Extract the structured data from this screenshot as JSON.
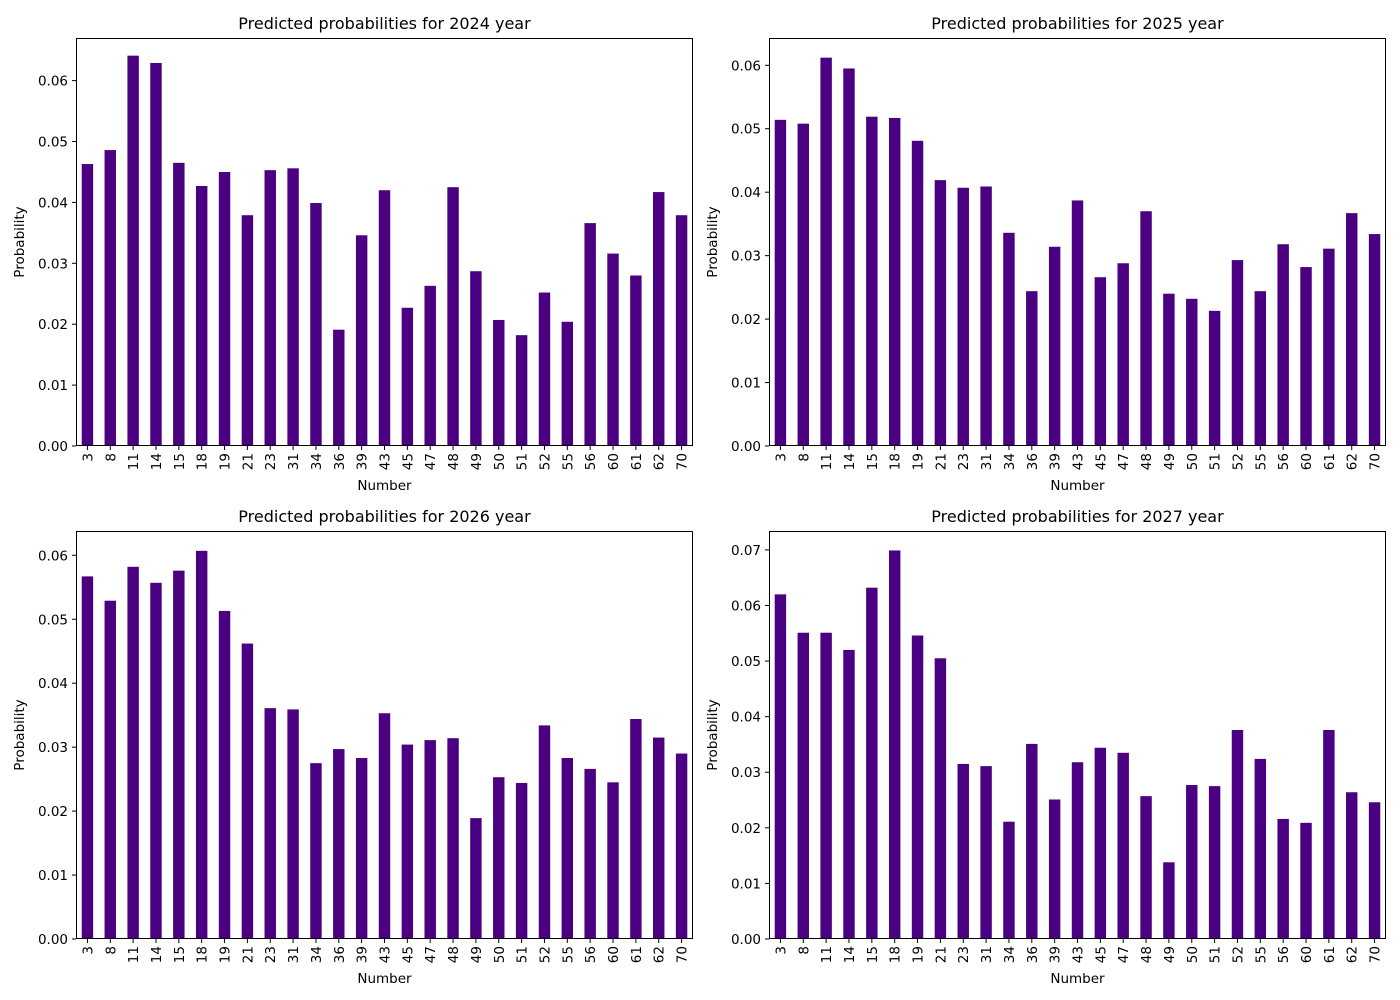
{
  "figure": {
    "background": "#ffffff",
    "bar_color": "#4b0082"
  },
  "chart_data": [
    {
      "type": "bar",
      "title": "Predicted probabilities for 2024 year",
      "xlabel": "Number",
      "ylabel": "Probability",
      "ylim": [
        0,
        0.067
      ],
      "yticks": [
        "0.00",
        "0.01",
        "0.02",
        "0.03",
        "0.04",
        "0.05",
        "0.06"
      ],
      "categories": [
        "3",
        "8",
        "11",
        "14",
        "15",
        "18",
        "19",
        "21",
        "23",
        "31",
        "34",
        "36",
        "39",
        "43",
        "45",
        "47",
        "48",
        "49",
        "50",
        "51",
        "52",
        "55",
        "56",
        "60",
        "61",
        "62",
        "70"
      ],
      "values": [
        0.0463,
        0.0486,
        0.0641,
        0.0629,
        0.0465,
        0.0427,
        0.045,
        0.0379,
        0.0453,
        0.0456,
        0.0399,
        0.0191,
        0.0346,
        0.042,
        0.0227,
        0.0263,
        0.0425,
        0.0287,
        0.0207,
        0.0182,
        0.0252,
        0.0204,
        0.0366,
        0.0316,
        0.028,
        0.0417,
        0.0379
      ]
    },
    {
      "type": "bar",
      "title": "Predicted probabilities for 2025 year",
      "xlabel": "Number",
      "ylabel": "Probability",
      "ylim": [
        0,
        0.0643
      ],
      "yticks": [
        "0.00",
        "0.01",
        "0.02",
        "0.03",
        "0.04",
        "0.05",
        "0.06"
      ],
      "categories": [
        "3",
        "8",
        "11",
        "14",
        "15",
        "18",
        "19",
        "21",
        "23",
        "31",
        "34",
        "36",
        "39",
        "43",
        "45",
        "47",
        "48",
        "49",
        "50",
        "51",
        "52",
        "55",
        "56",
        "60",
        "61",
        "62",
        "70"
      ],
      "values": [
        0.0514,
        0.0508,
        0.0612,
        0.0595,
        0.0519,
        0.0517,
        0.0481,
        0.0419,
        0.0407,
        0.0409,
        0.0336,
        0.0244,
        0.0314,
        0.0387,
        0.0266,
        0.0288,
        0.037,
        0.024,
        0.0232,
        0.0213,
        0.0293,
        0.0244,
        0.0318,
        0.0282,
        0.0311,
        0.0367,
        0.0334
      ]
    },
    {
      "type": "bar",
      "title": "Predicted probabilities for 2026 year",
      "xlabel": "Number",
      "ylabel": "Probability",
      "ylim": [
        0,
        0.0638
      ],
      "yticks": [
        "0.00",
        "0.01",
        "0.02",
        "0.03",
        "0.04",
        "0.05",
        "0.06"
      ],
      "categories": [
        "3",
        "8",
        "11",
        "14",
        "15",
        "18",
        "19",
        "21",
        "23",
        "31",
        "34",
        "36",
        "39",
        "43",
        "45",
        "47",
        "48",
        "49",
        "50",
        "51",
        "52",
        "55",
        "56",
        "60",
        "61",
        "62",
        "70"
      ],
      "values": [
        0.0567,
        0.0529,
        0.0582,
        0.0557,
        0.0576,
        0.0607,
        0.0513,
        0.0462,
        0.0361,
        0.0359,
        0.0275,
        0.0297,
        0.0283,
        0.0353,
        0.0304,
        0.0311,
        0.0314,
        0.0189,
        0.0253,
        0.0244,
        0.0334,
        0.0283,
        0.0266,
        0.0245,
        0.0344,
        0.0315,
        0.029
      ]
    },
    {
      "type": "bar",
      "title": "Predicted probabilities for 2027 year",
      "xlabel": "Number",
      "ylabel": "Probability",
      "ylim": [
        0,
        0.0734
      ],
      "yticks": [
        "0.00",
        "0.01",
        "0.02",
        "0.03",
        "0.04",
        "0.05",
        "0.06",
        "0.07"
      ],
      "categories": [
        "3",
        "8",
        "11",
        "14",
        "15",
        "18",
        "19",
        "21",
        "23",
        "31",
        "34",
        "36",
        "39",
        "43",
        "45",
        "47",
        "48",
        "49",
        "50",
        "51",
        "52",
        "55",
        "56",
        "60",
        "61",
        "62",
        "70"
      ],
      "values": [
        0.062,
        0.0551,
        0.0551,
        0.052,
        0.0632,
        0.0699,
        0.0546,
        0.0505,
        0.0315,
        0.0311,
        0.0211,
        0.0351,
        0.0251,
        0.0318,
        0.0344,
        0.0335,
        0.0257,
        0.0138,
        0.0277,
        0.0275,
        0.0376,
        0.0324,
        0.0216,
        0.0209,
        0.0376,
        0.0264,
        0.0246
      ]
    }
  ]
}
